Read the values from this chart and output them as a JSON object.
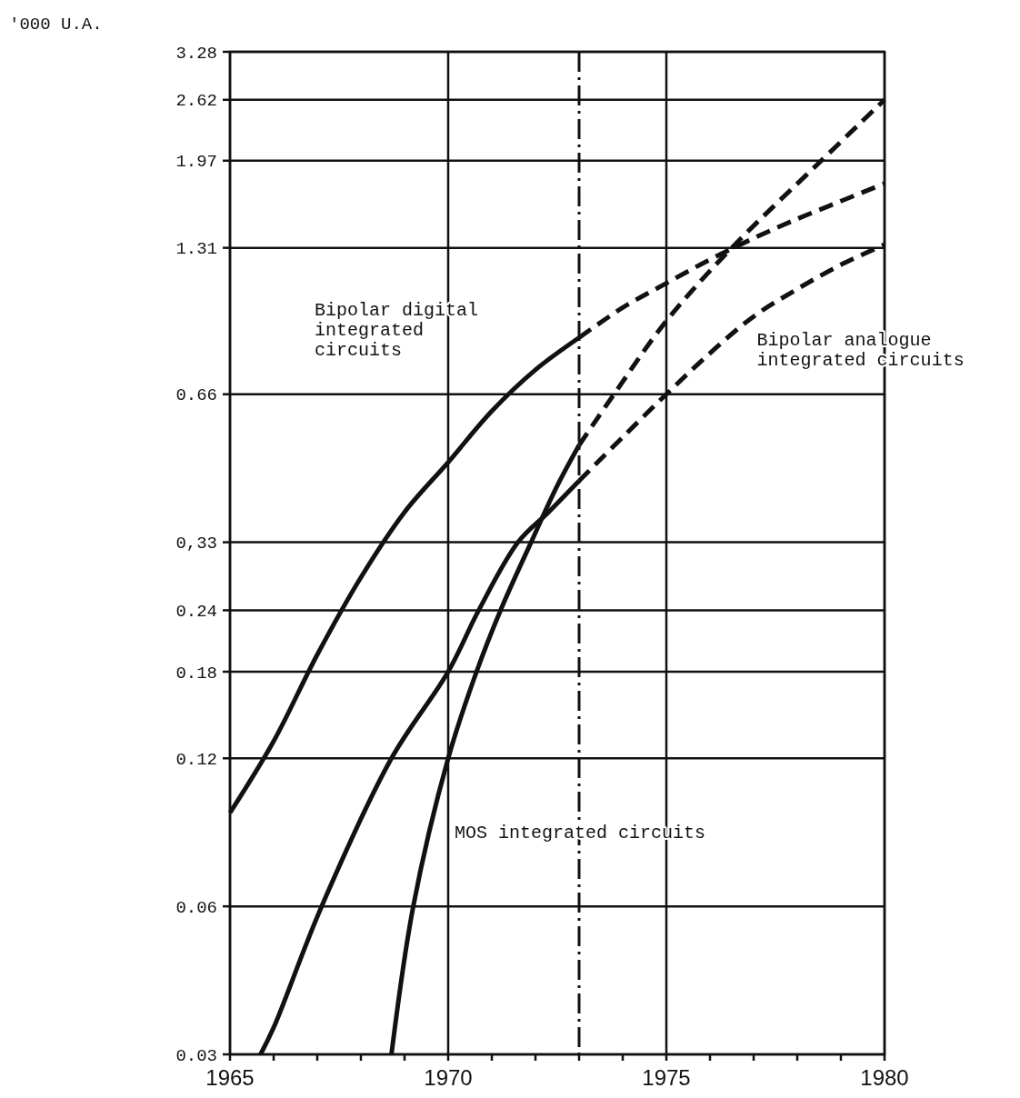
{
  "chart_data": {
    "type": "line",
    "ylabel": "'000 U.A.",
    "log": "y",
    "grid": true,
    "line_style": "solid",
    "marker": "none",
    "xlim": [
      1965,
      1980
    ],
    "xticks": [
      1965,
      {
        "value": 1966,
        "label": null
      },
      {
        "value": 1967,
        "label": null
      },
      {
        "value": 1968,
        "label": null
      },
      {
        "value": 1969,
        "label": null
      },
      1970,
      {
        "value": 1971,
        "label": null
      },
      {
        "value": 1972,
        "label": null
      },
      {
        "value": 1973,
        "label": null
      },
      {
        "value": 1974,
        "label": null
      },
      1975,
      {
        "value": 1976,
        "label": null
      },
      {
        "value": 1977,
        "label": null
      },
      {
        "value": 1978,
        "label": null
      },
      {
        "value": 1979,
        "label": null
      },
      1980
    ],
    "ylim": [
      0.03,
      3.28
    ],
    "yticks": [
      0.03,
      0.06,
      0.12,
      0.18,
      0.24,
      {
        "value": 0.33,
        "label": "0,33"
      },
      0.66,
      1.31,
      1.97,
      2.62,
      3.28
    ],
    "series": [
      {
        "color": "#111111",
        "x": [
          1965,
          1966,
          1967,
          1968,
          1969,
          1970,
          1971,
          1972,
          1973
        ],
        "values": [
          0.093,
          0.13,
          0.195,
          0.28,
          0.38,
          0.48,
          0.61,
          0.74,
          0.86
        ]
      },
      {
        "color": "#111111",
        "line_style": "dashed",
        "x": [
          1973,
          1974,
          1975,
          1976,
          1977,
          1978,
          1979,
          1980
        ],
        "values": [
          0.86,
          0.99,
          1.11,
          1.24,
          1.37,
          1.5,
          1.63,
          1.77
        ]
      },
      {
        "color": "#111111",
        "x": [
          1965.7,
          1966,
          1967.1,
          1968.7,
          1970,
          1970.7,
          1971.6,
          1972.3,
          1973
        ],
        "values": [
          0.03,
          0.034,
          0.06,
          0.12,
          0.18,
          0.24,
          0.33,
          0.38,
          0.44
        ]
      },
      {
        "color": "#111111",
        "line_style": "dashed",
        "x": [
          1973,
          1974,
          1975,
          1976,
          1977,
          1978,
          1979,
          1980
        ],
        "values": [
          0.44,
          0.54,
          0.66,
          0.8,
          0.95,
          1.08,
          1.21,
          1.33
        ]
      },
      {
        "color": "#111111",
        "x": [
          1968.7,
          1969.2,
          1970,
          1970.65,
          1971.2,
          1971.9,
          1972.5,
          1973
        ],
        "values": [
          0.03,
          0.06,
          0.12,
          0.18,
          0.24,
          0.33,
          0.43,
          0.52
        ]
      },
      {
        "color": "#111111",
        "line_style": "dashed",
        "x": [
          1973,
          1973.8,
          1975,
          1976.5,
          1978.55,
          1980
        ],
        "values": [
          0.52,
          0.66,
          0.93,
          1.31,
          1.97,
          2.62
        ]
      }
    ],
    "ref_lines": [
      {
        "axis": "x",
        "value": 1973,
        "line_style": "dashdot",
        "color": "#111111"
      }
    ],
    "annotations": [
      "Bipolar digital\nintegrated\ncircuits",
      "Bipolar analogue\nintegrated circuits",
      "MOS integrated circuits"
    ]
  }
}
